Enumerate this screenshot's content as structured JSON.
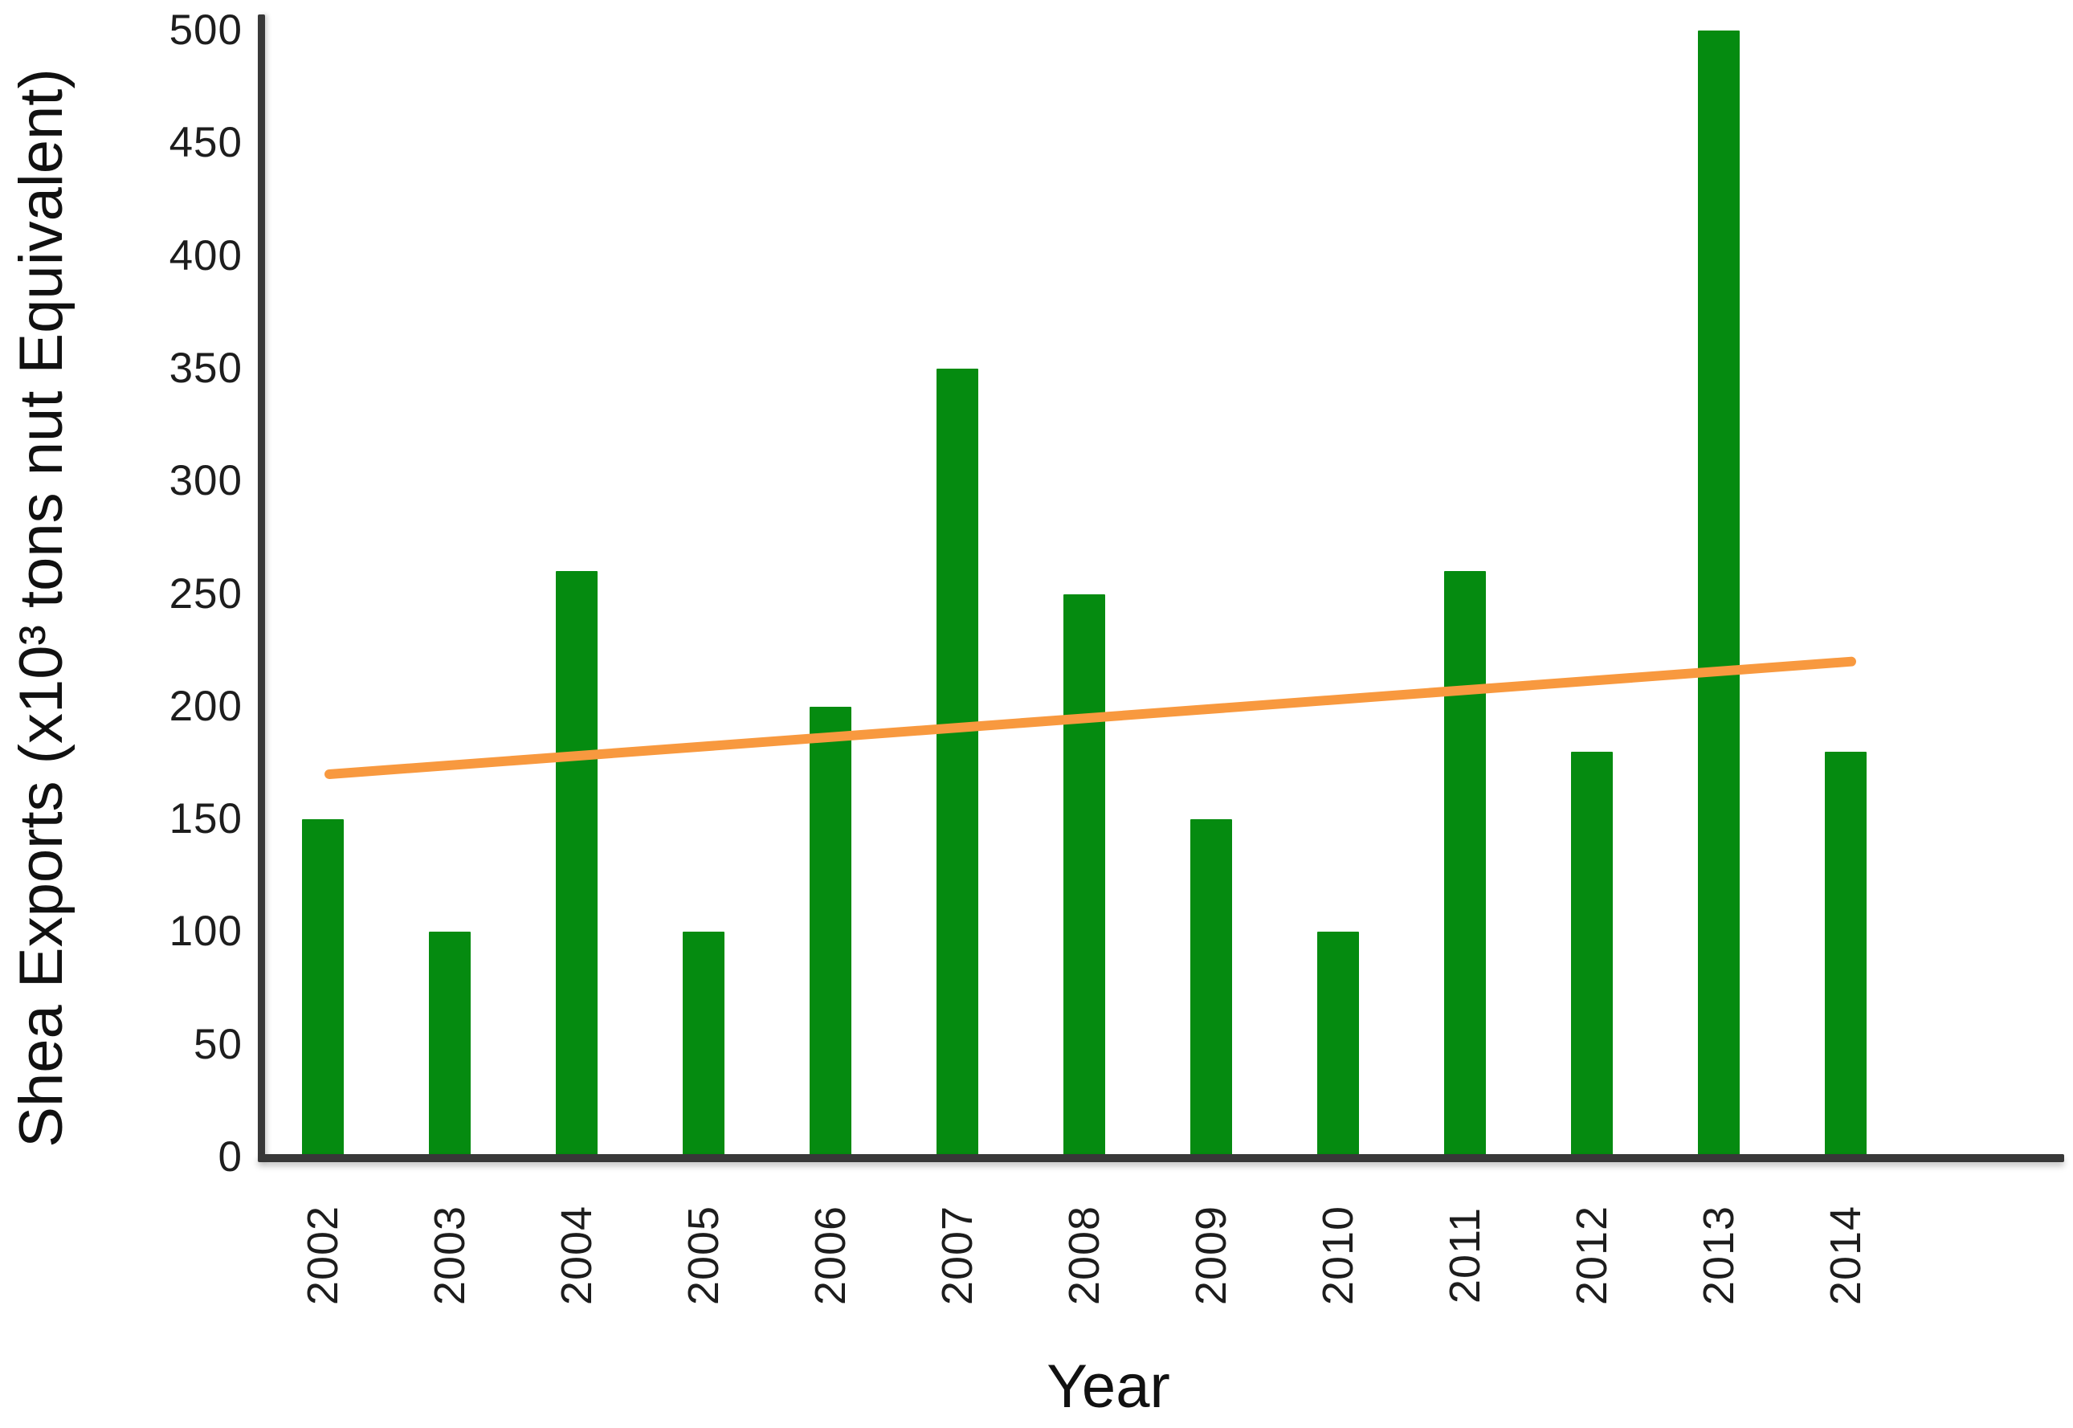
{
  "chart_data": {
    "type": "bar",
    "title": "",
    "categories": [
      "2002",
      "2003",
      "2004",
      "2005",
      "2006",
      "2007",
      "2008",
      "2009",
      "2010",
      "2011",
      "2012",
      "2013",
      "2014"
    ],
    "series": [
      {
        "name": "Shea Exports",
        "color": "#058b10",
        "values": [
          150,
          100,
          260,
          100,
          200,
          350,
          250,
          150,
          100,
          260,
          180,
          500,
          180
        ]
      }
    ],
    "trend_line": {
      "color": "#f8993f",
      "points": [
        {
          "x": "2002",
          "y": 170
        },
        {
          "x": "2014",
          "y": 220
        }
      ]
    },
    "xlabel": "Year",
    "ylabel": "Shea Exports (x10³ tons nut Equivalent)",
    "ylim": [
      0,
      500
    ],
    "yticks": [
      0,
      50,
      100,
      150,
      200,
      250,
      300,
      350,
      400,
      450,
      500
    ],
    "grid": false,
    "legend_position": "none",
    "axis_color": "#383838",
    "text_color": "#1d1d1d",
    "background_color": "#ffffff"
  }
}
